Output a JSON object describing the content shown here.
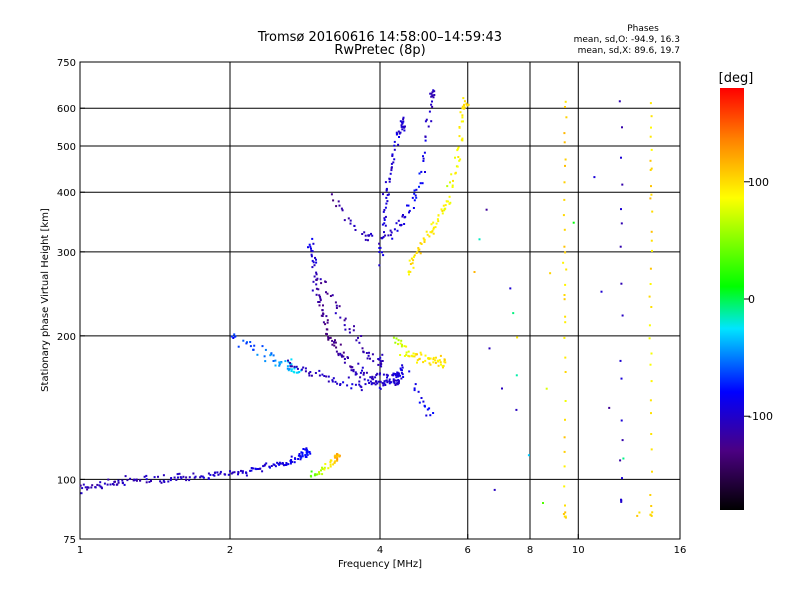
{
  "chart_data": {
    "type": "scatter",
    "title": "Tromsø 20160616 14:58:00–14:59:43",
    "subtitle": "RwPretec (8p)",
    "xlabel": "Frequency [MHz]",
    "ylabel": "Stationary phase Virtual Height [km]",
    "x_scale": "log",
    "y_scale": "log",
    "xlim": [
      1,
      16
    ],
    "ylim": [
      75,
      750
    ],
    "x_ticks": [
      {
        "value": 1,
        "label": "1"
      },
      {
        "value": 2,
        "label": "2"
      },
      {
        "value": 4,
        "label": "4"
      },
      {
        "value": 6,
        "label": "6"
      },
      {
        "value": 8,
        "label": "8"
      },
      {
        "value": 10,
        "label": "10"
      },
      {
        "value": 16,
        "label": "16"
      }
    ],
    "y_ticks": [
      {
        "value": 75,
        "label": "75"
      },
      {
        "value": 100,
        "label": "100"
      },
      {
        "value": 200,
        "label": "200"
      },
      {
        "value": 300,
        "label": "300"
      },
      {
        "value": 400,
        "label": "400"
      },
      {
        "value": 500,
        "label": "500"
      },
      {
        "value": 600,
        "label": "600"
      },
      {
        "value": 750,
        "label": "750"
      }
    ],
    "x_gridlines": [
      2,
      4,
      6,
      8,
      10
    ],
    "y_gridlines": [
      100,
      200,
      300,
      400,
      500,
      600
    ],
    "phase_info": {
      "heading": "Phases",
      "line_o": "mean, sd,O: -94.9, 16.3",
      "line_x": "mean, sd,X:  89.6, 19.7"
    },
    "colorbar": {
      "label": "[deg]",
      "range": [
        -180,
        180
      ],
      "ticks": [
        {
          "value": 100,
          "label": "100"
        },
        {
          "value": 0,
          "label": "0"
        },
        {
          "value": -100,
          "label": "-100"
        }
      ]
    },
    "traces": [
      {
        "points": [
          [
            1.0,
            96,
            -110
          ],
          [
            1.1,
            97,
            -110
          ],
          [
            1.2,
            99,
            -108
          ],
          [
            1.3,
            100,
            -108
          ],
          [
            1.45,
            100,
            -105
          ],
          [
            1.6,
            101,
            -105
          ],
          [
            1.8,
            102,
            -100
          ],
          [
            2.0,
            103,
            -100
          ],
          [
            2.2,
            104,
            -95
          ],
          [
            2.4,
            106,
            -95
          ],
          [
            2.6,
            108,
            -90
          ],
          [
            2.75,
            111,
            -85
          ],
          [
            2.85,
            114,
            -80
          ]
        ],
        "jx": 0.012,
        "jy": 0.012,
        "n": 14
      },
      {
        "points": [
          [
            2.9,
            102,
            30
          ],
          [
            3.05,
            104,
            60
          ],
          [
            3.2,
            108,
            95
          ],
          [
            3.3,
            112,
            115
          ]
        ],
        "jx": 0.008,
        "jy": 0.012,
        "n": 10
      },
      {
        "points": [
          [
            2.0,
            202,
            -70
          ],
          [
            2.2,
            190,
            -60
          ],
          [
            2.4,
            180,
            -50
          ],
          [
            2.55,
            175,
            -40
          ],
          [
            2.7,
            170,
            -30
          ]
        ],
        "jx": 0.02,
        "jy": 0.018,
        "n": 10
      },
      {
        "points": [
          [
            2.9,
            320,
            -90
          ],
          [
            2.95,
            280,
            -100
          ],
          [
            3.0,
            245,
            -120
          ],
          [
            3.08,
            215,
            -125
          ],
          [
            3.2,
            195,
            -130
          ],
          [
            3.35,
            180,
            -120
          ],
          [
            3.55,
            170,
            -110
          ],
          [
            3.8,
            164,
            -105
          ],
          [
            4.05,
            162,
            -100
          ],
          [
            4.25,
            163,
            -95
          ],
          [
            4.4,
            168,
            -95
          ]
        ],
        "jx": 0.01,
        "jy": 0.02,
        "n": 14
      },
      {
        "points": [
          [
            2.6,
            175,
            -110
          ],
          [
            2.85,
            170,
            -105
          ],
          [
            3.1,
            164,
            -105
          ],
          [
            3.4,
            160,
            -100
          ],
          [
            3.7,
            158,
            -100
          ],
          [
            4.0,
            158,
            -100
          ],
          [
            4.3,
            160,
            -100
          ]
        ],
        "jx": 0.012,
        "jy": 0.015,
        "n": 10
      },
      {
        "points": [
          [
            3.0,
            270,
            -120
          ],
          [
            3.2,
            240,
            -120
          ],
          [
            3.4,
            215,
            -115
          ],
          [
            3.6,
            195,
            -110
          ],
          [
            3.8,
            182,
            -110
          ],
          [
            4.0,
            176,
            -105
          ]
        ],
        "jx": 0.012,
        "jy": 0.018,
        "n": 8
      },
      {
        "points": [
          [
            3.2,
            390,
            -130
          ],
          [
            3.4,
            360,
            -115
          ],
          [
            3.6,
            335,
            -110
          ],
          [
            3.8,
            325,
            -105
          ]
        ],
        "jx": 0.012,
        "jy": 0.015,
        "n": 6
      },
      {
        "points": [
          [
            4.0,
            290,
            -95
          ],
          [
            4.05,
            335,
            -100
          ],
          [
            4.12,
            385,
            -100
          ],
          [
            4.2,
            440,
            -100
          ],
          [
            4.3,
            510,
            -95
          ],
          [
            4.45,
            560,
            -100
          ]
        ],
        "jx": 0.008,
        "jy": 0.02,
        "n": 12
      },
      {
        "points": [
          [
            4.2,
            320,
            -100
          ],
          [
            4.4,
            345,
            -100
          ],
          [
            4.6,
            370,
            -85
          ],
          [
            4.8,
            420,
            -80
          ],
          [
            4.95,
            520,
            -95
          ],
          [
            5.1,
            640,
            -110
          ]
        ],
        "jx": 0.01,
        "jy": 0.02,
        "n": 10
      },
      {
        "points": [
          [
            4.55,
            270,
            95
          ],
          [
            4.75,
            300,
            100
          ],
          [
            5.0,
            330,
            95
          ],
          [
            5.3,
            355,
            90
          ],
          [
            5.55,
            400,
            80
          ],
          [
            5.75,
            490,
            85
          ],
          [
            5.9,
            610,
            95
          ]
        ],
        "jx": 0.01,
        "jy": 0.02,
        "n": 14
      },
      {
        "points": [
          [
            4.3,
            200,
            60
          ],
          [
            4.5,
            185,
            80
          ],
          [
            4.75,
            180,
            95
          ],
          [
            5.0,
            178,
            90
          ],
          [
            5.3,
            176,
            95
          ]
        ],
        "jx": 0.015,
        "jy": 0.018,
        "n": 12
      },
      {
        "points": [
          [
            4.6,
            170,
            -100
          ],
          [
            4.8,
            145,
            -90
          ],
          [
            5.0,
            140,
            -80
          ]
        ],
        "jx": 0.015,
        "jy": 0.03,
        "n": 5
      },
      {
        "points": [
          [
            9.4,
            620,
            100
          ],
          [
            9.4,
            480,
            110
          ],
          [
            9.4,
            330,
            100
          ],
          [
            9.4,
            260,
            95
          ],
          [
            9.4,
            200,
            100
          ],
          [
            9.4,
            120,
            95
          ],
          [
            9.4,
            85,
            100
          ]
        ],
        "jx": 0.004,
        "jy": 0.02,
        "n": 5
      },
      {
        "points": [
          [
            14.0,
            600,
            95
          ],
          [
            14.0,
            480,
            100
          ],
          [
            14.0,
            380,
            105
          ],
          [
            14.0,
            280,
            95
          ],
          [
            14.0,
            200,
            85
          ],
          [
            14.0,
            140,
            95
          ],
          [
            14.0,
            85,
            100
          ]
        ],
        "jx": 0.004,
        "jy": 0.02,
        "n": 5
      },
      {
        "points": [
          [
            12.2,
            620,
            -110
          ],
          [
            12.2,
            420,
            -100
          ],
          [
            12.2,
            310,
            -120
          ],
          [
            12.2,
            180,
            -100
          ],
          [
            12.2,
            120,
            -110
          ],
          [
            12.2,
            90,
            -100
          ]
        ],
        "jx": 0.004,
        "jy": 0.02,
        "n": 3
      },
      {
        "points": [
          [
            6.2,
            275,
            100
          ],
          [
            6.5,
            370,
            -120
          ],
          [
            6.8,
            95,
            -110
          ],
          [
            7.3,
            250,
            -100
          ],
          [
            7.5,
            200,
            90
          ],
          [
            7.5,
            140,
            -110
          ],
          [
            8.5,
            90,
            40
          ],
          [
            8.8,
            270,
            100
          ],
          [
            10.8,
            430,
            -90
          ],
          [
            11.5,
            140,
            -120
          ],
          [
            13.2,
            85,
            100
          ]
        ],
        "jx": 0.004,
        "jy": 0.01,
        "n": 2
      }
    ]
  }
}
